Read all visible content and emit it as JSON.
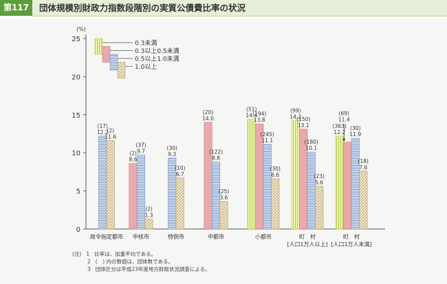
{
  "header": {
    "figure_label": "第117図",
    "title": "団体規模別財政力指数段階別の実質公債費比率の状況"
  },
  "chart_data": {
    "type": "bar",
    "ylabel": "(%)",
    "ylim": [
      0,
      25
    ],
    "yticks": [
      0,
      5,
      10,
      15,
      20,
      25
    ],
    "grid": false,
    "legend_position": "top-left",
    "categories": [
      {
        "line1": "政令指定都市",
        "line2": ""
      },
      {
        "line1": "中核市",
        "line2": ""
      },
      {
        "line1": "特例市",
        "line2": ""
      },
      {
        "line1": "中都市",
        "line2": ""
      },
      {
        "line1": "小都市",
        "line2": ""
      },
      {
        "line1": "町　村",
        "line2": "[人口1万人以上]"
      },
      {
        "line1": "町　村",
        "line2": "[人口1万人未満]"
      }
    ],
    "series": [
      {
        "name": "0.3未満",
        "pattern": "green-vertical",
        "values": [
          null,
          null,
          null,
          null,
          14.4,
          14.2,
          12.2
        ],
        "counts": [
          null,
          null,
          null,
          null,
          "(51)",
          "(99)",
          "(363)"
        ],
        "labels": [
          null,
          null,
          null,
          null,
          "14.4",
          "14.2",
          "12.2"
        ]
      },
      {
        "name": "0.3以上0.5未満",
        "pattern": "pink-solid",
        "values": [
          null,
          8.6,
          null,
          14.0,
          13.8,
          13.1,
          11.4
        ],
        "counts": [
          null,
          "(2)",
          null,
          "(20)",
          "(194)",
          "(150)",
          "(69)"
        ],
        "labels": [
          null,
          "8.6",
          null,
          "14.0",
          "13.8",
          "13.1",
          "11.4"
        ]
      },
      {
        "name": "0.5以上1.0未満",
        "pattern": "blue-horizontal",
        "values": [
          12.2,
          9.7,
          9.3,
          8.8,
          11.1,
          10.1,
          11.9
        ],
        "counts": [
          "(17)",
          "(37)",
          "(30)",
          "(122)",
          "(245)",
          "(180)",
          "(30)"
        ],
        "labels": [
          "12.2",
          "9.7",
          "9.3",
          "8.8",
          "11.1",
          "10.1",
          "11.9"
        ]
      },
      {
        "name": "1.0以上",
        "pattern": "tan-diagonal",
        "values": [
          11.6,
          1.3,
          6.7,
          3.6,
          6.6,
          5.6,
          7.6
        ],
        "counts": [
          "(2)",
          "(2)",
          "(10)",
          "(25)",
          "(30)",
          "(23)",
          "(18)"
        ],
        "labels": [
          "11.6",
          "1.3",
          "6.7",
          "3.6",
          "6.6",
          "5.6",
          "7.6"
        ]
      }
    ]
  },
  "notes": [
    {
      "mark": "(注)",
      "num": "1",
      "text": "比率は、加重平均である。"
    },
    {
      "mark": "",
      "num": "2",
      "text": "(　) 内の数値は、団体数である。"
    },
    {
      "mark": "",
      "num": "3",
      "text": "団体区分は平成23年度地方財政状況調査による。"
    }
  ],
  "colors": {
    "badge": "#5d9e3b",
    "title_band": "#e6f0d8",
    "green_fill": "#eef3b2",
    "green_line": "#b8cc55",
    "pink_fill": "#e8aaaa",
    "pink_line": "#c97b7b",
    "blue_fill": "#dce6f2",
    "blue_line": "#6f8fc4",
    "tan_fill": "#f3ecd6",
    "tan_line": "#b59a62"
  }
}
